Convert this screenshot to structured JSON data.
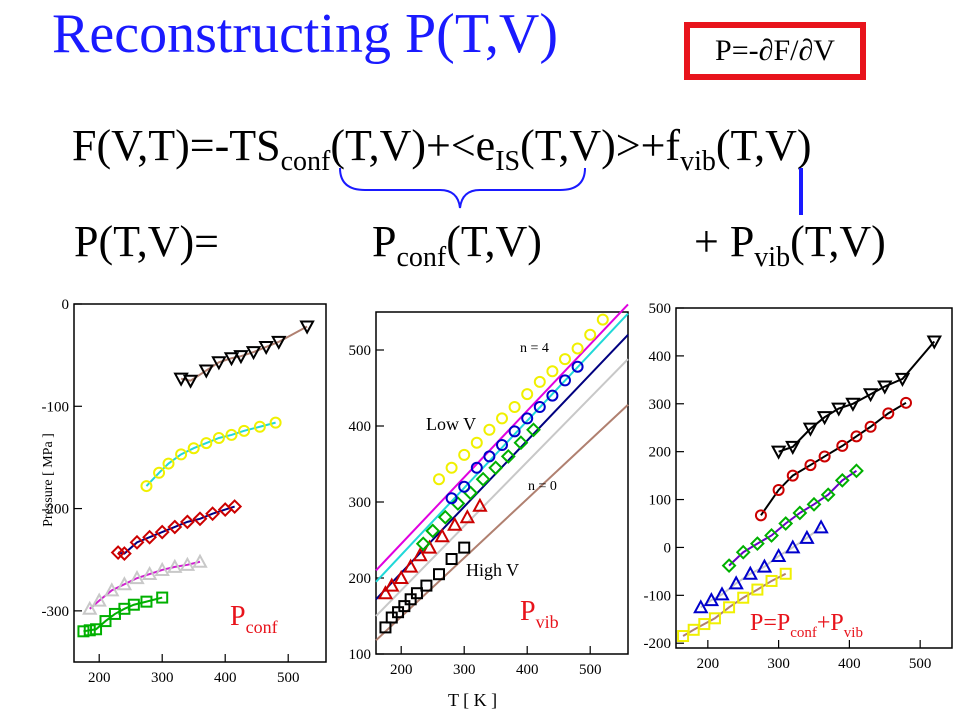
{
  "title": "Reconstructing P(T,V)",
  "boxed_formula": "P=-∂F/∂V",
  "equation_free_energy": {
    "p1": "F(V,T)=-TS",
    "s1": "conf",
    "p2": "(T,V)+<e",
    "s2": "IS",
    "p3": "(T,V)>+f",
    "s3": "vib",
    "p4": "(T,V)"
  },
  "equation_pressure": {
    "lhs": "P(T,V)=",
    "conf_main": "P",
    "conf_sub": "conf",
    "conf_tail": "(T,V)",
    "vib_main": "+ P",
    "vib_sub": "vib",
    "vib_tail": "(T,V)"
  },
  "colors": {
    "title": "#1a1aff",
    "box": "#e8141c",
    "panel_label": "#e8141c",
    "brace": "#1a1aff"
  },
  "chart_data": [
    {
      "type": "scatter",
      "title": "",
      "ylabel": "Pressure [ MPa ]",
      "xlabel": "",
      "xlim": [
        160,
        560
      ],
      "ylim": [
        -350,
        0
      ],
      "xticks": [
        200,
        300,
        400,
        500
      ],
      "yticks": [
        0,
        -100,
        -200,
        -300
      ],
      "xtick_labels": [
        "200",
        "300",
        "400",
        "500"
      ],
      "ytick_labels": [
        "0",
        "-100",
        "-200",
        "-300"
      ],
      "label_main": "P",
      "label_sub": "conf",
      "series": [
        {
          "marker": "triangle-down",
          "color": "#000000",
          "line_color": "#b08070",
          "x": [
            330,
            345,
            370,
            390,
            410,
            425,
            445,
            465,
            485,
            530
          ],
          "y": [
            -73,
            -75,
            -65,
            -57,
            -53,
            -51,
            -47,
            -42,
            -37,
            -22
          ]
        },
        {
          "marker": "circle",
          "color": "#f0f000",
          "line_color": "#20d8d8",
          "x": [
            275,
            295,
            310,
            330,
            350,
            370,
            390,
            410,
            430,
            455,
            480
          ],
          "y": [
            -178,
            -165,
            -156,
            -147,
            -141,
            -136,
            -131,
            -128,
            -124,
            -120,
            -116
          ]
        },
        {
          "marker": "diamond",
          "color": "#cc0000",
          "line_color": "#000080",
          "x": [
            230,
            240,
            260,
            280,
            300,
            320,
            340,
            360,
            380,
            400,
            415
          ],
          "y": [
            -243,
            -244,
            -233,
            -228,
            -223,
            -218,
            -213,
            -210,
            -205,
            -201,
            -198
          ]
        },
        {
          "marker": "triangle-up",
          "color": "#c8c8c8",
          "line_color": "#d020d0",
          "x": [
            185,
            200,
            220,
            240,
            260,
            280,
            300,
            320,
            340,
            360
          ],
          "y": [
            -298,
            -290,
            -280,
            -274,
            -268,
            -264,
            -260,
            -257,
            -255,
            -252
          ]
        },
        {
          "marker": "square",
          "color": "#00b000",
          "line_color": "#00b000",
          "x": [
            175,
            185,
            195,
            210,
            225,
            240,
            255,
            275,
            300
          ],
          "y": [
            -320,
            -319,
            -318,
            -310,
            -303,
            -298,
            -294,
            -291,
            -287
          ]
        }
      ]
    },
    {
      "type": "scatter",
      "title": "",
      "xlabel": "T [ K ]",
      "ylabel": "",
      "xlim": [
        160,
        560
      ],
      "ylim": [
        100,
        550
      ],
      "xticks": [
        200,
        300,
        400,
        500
      ],
      "yticks": [
        100,
        200,
        300,
        400,
        500
      ],
      "xtick_labels": [
        "200",
        "300",
        "400",
        "500"
      ],
      "ytick_labels": [
        "100",
        "200",
        "300",
        "400",
        "500"
      ],
      "label_main": "P",
      "label_sub": "vib",
      "annotations": [
        "n = 4",
        "Low V",
        "n = 0",
        "High V"
      ],
      "lines": [
        {
          "color": "#e000e0",
          "x": [
            160,
            560
          ],
          "y": [
            210,
            560
          ]
        },
        {
          "color": "#20d8d8",
          "x": [
            160,
            560
          ],
          "y": [
            195,
            548
          ]
        },
        {
          "color": "#000080",
          "x": [
            160,
            560
          ],
          "y": [
            172,
            520
          ]
        },
        {
          "color": "#c8c8c8",
          "x": [
            160,
            560
          ],
          "y": [
            150,
            488
          ]
        },
        {
          "color": "#b08070",
          "x": [
            160,
            560
          ],
          "y": [
            118,
            428
          ]
        }
      ],
      "series": [
        {
          "marker": "square",
          "color": "#000000",
          "x": [
            175,
            185,
            195,
            205,
            215,
            225,
            240,
            260,
            280,
            300
          ],
          "y": [
            135,
            148,
            155,
            163,
            172,
            180,
            190,
            205,
            225,
            240
          ]
        },
        {
          "marker": "triangle-up",
          "color": "#cc0000",
          "x": [
            175,
            185,
            200,
            215,
            230,
            245,
            265,
            285,
            305,
            325
          ],
          "y": [
            180,
            190,
            200,
            215,
            230,
            240,
            255,
            270,
            280,
            295
          ]
        },
        {
          "marker": "diamond",
          "color": "#00b000",
          "x": [
            235,
            250,
            270,
            290,
            310,
            330,
            350,
            370,
            390,
            410
          ],
          "y": [
            245,
            262,
            280,
            298,
            312,
            330,
            345,
            360,
            378,
            395
          ]
        },
        {
          "marker": "circle",
          "color": "#0000cc",
          "x": [
            280,
            300,
            320,
            340,
            360,
            380,
            400,
            420,
            440,
            460,
            480
          ],
          "y": [
            305,
            320,
            345,
            360,
            375,
            393,
            410,
            425,
            440,
            460,
            478
          ]
        },
        {
          "marker": "circle",
          "color": "#f0f000",
          "x": [
            260,
            280,
            300,
            320,
            340,
            360,
            380,
            400,
            420,
            440,
            460,
            480,
            500,
            520
          ],
          "y": [
            330,
            345,
            362,
            378,
            395,
            410,
            425,
            442,
            458,
            472,
            488,
            502,
            520,
            540
          ]
        }
      ]
    },
    {
      "type": "scatter",
      "title": "",
      "xlabel": "",
      "ylabel": "",
      "xlim": [
        155,
        545
      ],
      "ylim": [
        -210,
        500
      ],
      "xticks": [
        200,
        300,
        400,
        500
      ],
      "yticks": [
        -200,
        -100,
        0,
        100,
        200,
        300,
        400,
        500
      ],
      "xtick_labels": [
        "200",
        "300",
        "400",
        "500"
      ],
      "ytick_labels": [
        "-200",
        "-100",
        "0",
        "100",
        "200",
        "300",
        "400",
        "500"
      ],
      "label_text": "P=P",
      "label_sub1": "conf",
      "label_mid": "+P",
      "label_sub2": "vib",
      "series": [
        {
          "marker": "triangle-down",
          "color": "#000000",
          "line_color": "#000000",
          "x": [
            300,
            320,
            345,
            365,
            385,
            405,
            430,
            450,
            475,
            520
          ],
          "y": [
            200,
            210,
            248,
            272,
            290,
            300,
            320,
            336,
            352,
            430
          ]
        },
        {
          "marker": "circle",
          "color": "#cc0000",
          "line_color": "#000000",
          "x": [
            275,
            300,
            320,
            345,
            365,
            390,
            410,
            430,
            455,
            480
          ],
          "y": [
            67,
            120,
            150,
            172,
            190,
            212,
            232,
            252,
            280,
            302
          ]
        },
        {
          "marker": "diamond",
          "color": "#00b000",
          "line_color": "#6a00c8",
          "x": [
            230,
            250,
            270,
            290,
            310,
            330,
            350,
            370,
            390,
            410
          ],
          "y": [
            -38,
            -10,
            8,
            25,
            50,
            72,
            90,
            110,
            140,
            160
          ]
        },
        {
          "marker": "triangle-up",
          "color": "#0000cc",
          "line_color": "#c8c8c8",
          "x": [
            190,
            205,
            220,
            240,
            260,
            280,
            300,
            320,
            340,
            360
          ],
          "y": [
            -125,
            -110,
            -98,
            -75,
            -55,
            -40,
            -18,
            0,
            20,
            42
          ]
        },
        {
          "marker": "square",
          "color": "#f0f000",
          "line_color": "#b08070",
          "x": [
            165,
            180,
            195,
            210,
            230,
            250,
            270,
            290,
            310
          ],
          "y": [
            -185,
            -172,
            -160,
            -148,
            -125,
            -105,
            -88,
            -70,
            -55
          ]
        }
      ]
    }
  ]
}
